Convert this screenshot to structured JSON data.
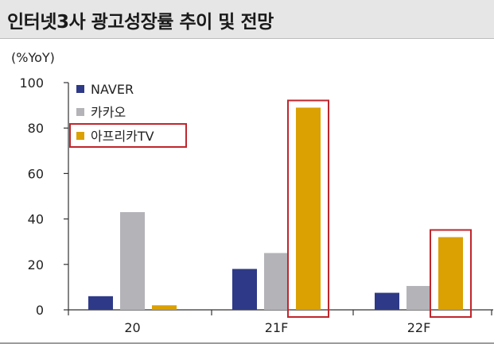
{
  "title": "인터넷3사 광고성장률 추이 및 전망",
  "colors": {
    "title_bar_bg": "#e6e6e6",
    "highlight_box": "#c0262c"
  },
  "chart_data": {
    "type": "bar",
    "unit_label": "(%YoY)",
    "categories": [
      "20",
      "21F",
      "22F"
    ],
    "series": [
      {
        "name": "NAVER",
        "color": "#2e3a87",
        "values": [
          6,
          18,
          7.5
        ]
      },
      {
        "name": "카카오",
        "color": "#b3b3b8",
        "values": [
          43,
          25,
          10.5
        ]
      },
      {
        "name": "아프리카TV",
        "color": "#dba002",
        "values": [
          2,
          89,
          32
        ]
      }
    ],
    "ylim": [
      0,
      100
    ],
    "y_ticks": [
      "0",
      "20",
      "40",
      "60",
      "80",
      "100"
    ],
    "grid": false,
    "legend_position": "top-left",
    "highlighted_series": "아프리카TV"
  }
}
